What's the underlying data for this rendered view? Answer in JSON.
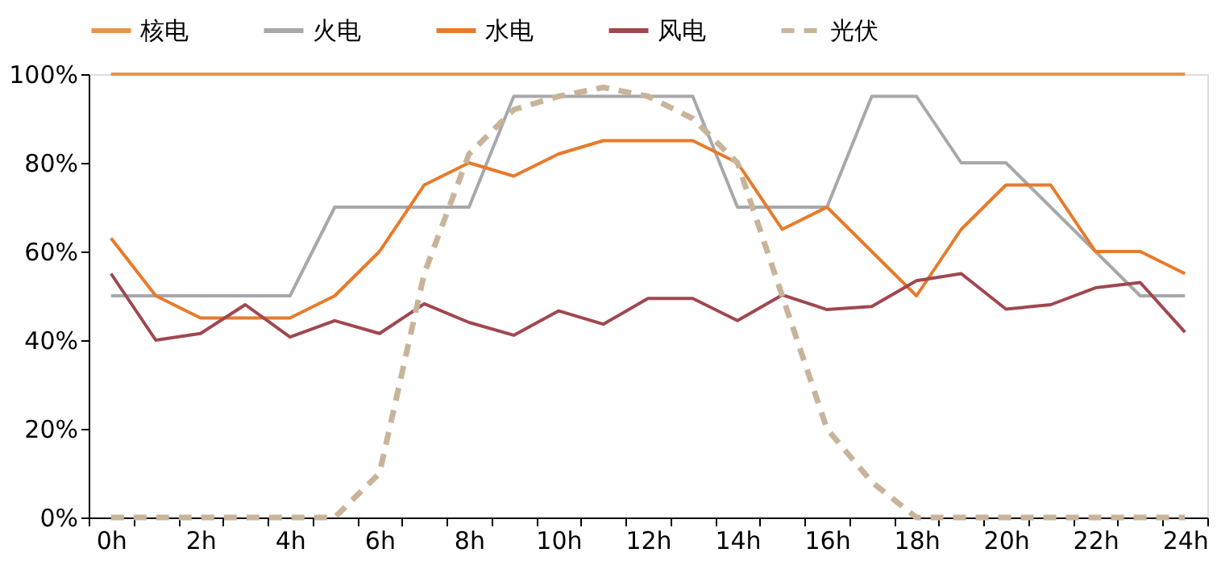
{
  "chart_data": {
    "type": "line",
    "categories": [
      "0h",
      null,
      "2h",
      null,
      "4h",
      null,
      "6h",
      null,
      "8h",
      null,
      "10h",
      null,
      "12h",
      null,
      "14h",
      null,
      "16h",
      null,
      "18h",
      null,
      "20h",
      null,
      "22h",
      null,
      "24h"
    ],
    "series": [
      {
        "name": "核电",
        "color": "#e8944a",
        "line_style": "solid",
        "values": [
          100,
          100,
          100,
          100,
          100,
          100,
          100,
          100,
          100,
          100,
          100,
          100,
          100,
          100,
          100,
          100,
          100,
          100,
          100,
          100,
          100,
          100,
          100,
          100,
          100
        ]
      },
      {
        "name": "火电",
        "color": "#a6a8ab",
        "line_style": "solid",
        "values": [
          50,
          50,
          50,
          50,
          50,
          70,
          70,
          70,
          70,
          95,
          95,
          95,
          95,
          95,
          70,
          70,
          70,
          95,
          95,
          80,
          80,
          70,
          60,
          50,
          50
        ]
      },
      {
        "name": "水电",
        "color": "#e87a2a",
        "line_style": "solid",
        "values": [
          63,
          50,
          45,
          45,
          45,
          50,
          60,
          75,
          80,
          77,
          82,
          85,
          85,
          85,
          80,
          65,
          70,
          60,
          50,
          65,
          75,
          75,
          60,
          60,
          55
        ]
      },
      {
        "name": "风电",
        "color": "#a0474f",
        "line_style": "solid",
        "values": [
          55,
          40,
          41.5,
          48,
          40.7,
          44.4,
          41.5,
          48.2,
          44,
          41.1,
          46.6,
          43.6,
          49.4,
          49.4,
          44.4,
          50.2,
          46.9,
          47.6,
          53.4,
          55,
          47,
          48,
          51.8,
          53,
          41.8
        ]
      },
      {
        "name": "光伏",
        "color": "#c8b49a",
        "line_style": "dashed",
        "values": [
          0,
          0,
          0,
          0,
          0,
          0,
          10,
          55,
          82,
          92,
          95,
          97,
          95,
          90,
          80,
          50,
          20,
          8,
          0,
          0,
          0,
          0,
          0,
          0,
          0
        ]
      }
    ],
    "ylim": [
      0,
      100
    ],
    "yticks": [
      {
        "value": 0,
        "label": "0%"
      },
      {
        "value": 20,
        "label": "20%"
      },
      {
        "value": 40,
        "label": "40%"
      },
      {
        "value": 60,
        "label": "60%"
      },
      {
        "value": 80,
        "label": "80%"
      },
      {
        "value": 100,
        "label": "100%"
      }
    ],
    "legend": "top",
    "grid": false,
    "marker": "none"
  }
}
